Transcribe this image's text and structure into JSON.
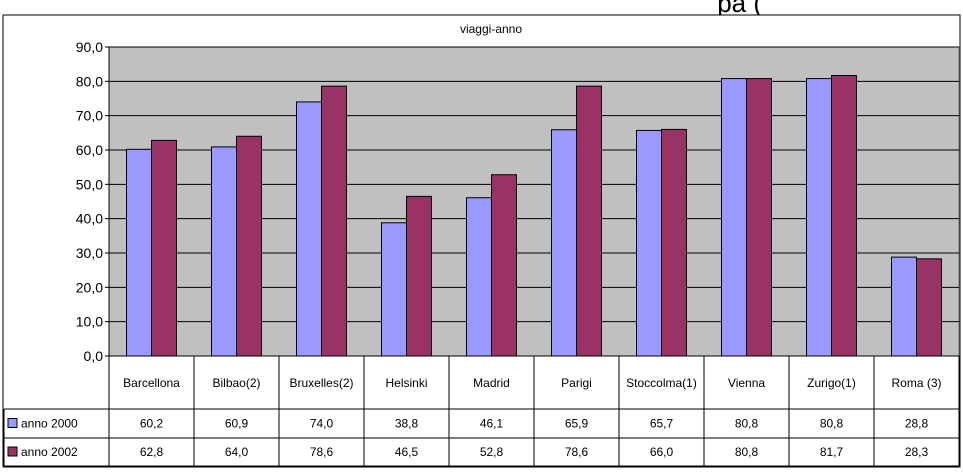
{
  "header_fragment": "pa (",
  "chart_data": {
    "type": "bar",
    "title": "viaggi-anno",
    "categories": [
      "Barcellona",
      "Bilbao(2)",
      "Bruxelles(2)",
      "Helsinki",
      "Madrid",
      "Parigi",
      "Stoccolma(1)",
      "Vienna",
      "Zurigo(1)",
      "Roma (3)"
    ],
    "series": [
      {
        "name": "anno 2000",
        "values": [
          60.2,
          60.9,
          74.0,
          38.8,
          46.1,
          65.9,
          65.7,
          80.8,
          80.8,
          28.8
        ],
        "labels": [
          "60,2",
          "60,9",
          "74,0",
          "38,8",
          "46,1",
          "65,9",
          "65,7",
          "80,8",
          "80,8",
          "28,8"
        ],
        "color": "#9999ff"
      },
      {
        "name": "anno 2002",
        "values": [
          62.8,
          64.0,
          78.6,
          46.5,
          52.8,
          78.6,
          66.0,
          80.8,
          81.7,
          28.3
        ],
        "labels": [
          "62,8",
          "64,0",
          "78,6",
          "46,5",
          "52,8",
          "78,6",
          "66,0",
          "80,8",
          "81,7",
          "28,3"
        ],
        "color": "#993366"
      }
    ],
    "ylim": [
      0,
      90
    ],
    "yticks": [
      0,
      10,
      20,
      30,
      40,
      50,
      60,
      70,
      80,
      90
    ],
    "ytick_labels": [
      "0,0",
      "10,0",
      "20,0",
      "30,0",
      "40,0",
      "50,0",
      "60,0",
      "70,0",
      "80,0",
      "90,0"
    ],
    "grid": true,
    "plot_background": "#c0c0c0",
    "legend": "data-table"
  }
}
